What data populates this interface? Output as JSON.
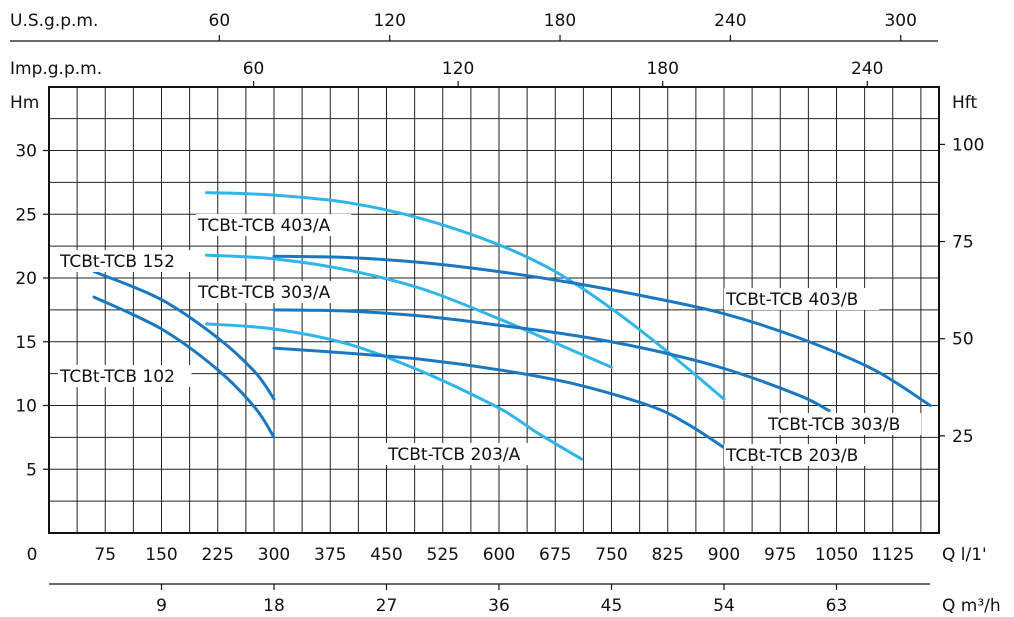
{
  "chart_data": {
    "type": "line",
    "title": "",
    "axes": {
      "top_usgpm": {
        "label": "U.S.g.p.m.",
        "ticks": [
          "60",
          "120",
          "180",
          "240",
          "300"
        ]
      },
      "top_impgpm": {
        "label": "Imp.g.p.m.",
        "ticks": [
          "60",
          "120",
          "180",
          "240"
        ]
      },
      "left": {
        "label": "Hm",
        "ticks": [
          "5",
          "10",
          "15",
          "20",
          "25",
          "30"
        ],
        "range": [
          0,
          35
        ]
      },
      "right": {
        "label": "Hft",
        "ticks": [
          "25",
          "50",
          "75",
          "100"
        ]
      },
      "bottom_lpm": {
        "label": "Q l/1'",
        "zero": "0",
        "ticks": [
          "75",
          "150",
          "225",
          "300",
          "375",
          "450",
          "525",
          "600",
          "675",
          "750",
          "825",
          "900",
          "975",
          "1050",
          "1125"
        ],
        "range": [
          0,
          1175
        ]
      },
      "bottom_m3h": {
        "label": "Q m³/h",
        "ticks": [
          "9",
          "18",
          "27",
          "36",
          "45",
          "54",
          "63"
        ]
      }
    },
    "grid": true,
    "series": [
      {
        "name": "TCBt-TCB 152",
        "color": "#1a78c2",
        "x": [
          60,
          150,
          225,
          275,
          300
        ],
        "y": [
          20.5,
          18.3,
          15.3,
          12.6,
          10.5
        ]
      },
      {
        "name": "TCBt-TCB 102",
        "color": "#1a78c2",
        "x": [
          60,
          150,
          225,
          275,
          300
        ],
        "y": [
          18.5,
          16.0,
          12.8,
          9.8,
          7.5
        ]
      },
      {
        "name": "TCBt-TCB 403/A",
        "color": "#2fb5ea",
        "x": [
          210,
          300,
          400,
          500,
          600,
          675,
          750,
          825,
          900
        ],
        "y": [
          26.7,
          26.5,
          25.9,
          24.6,
          22.6,
          20.5,
          17.6,
          14.2,
          10.5
        ]
      },
      {
        "name": "TCBt-TCB 303/A",
        "color": "#2fb5ea",
        "x": [
          210,
          300,
          400,
          500,
          600,
          675,
          750
        ],
        "y": [
          21.8,
          21.5,
          20.6,
          19.1,
          16.8,
          14.9,
          13.0
        ]
      },
      {
        "name": "TCBt-TCB 203/A",
        "color": "#2fb5ea",
        "x": [
          210,
          300,
          400,
          500,
          600,
          650,
          710
        ],
        "y": [
          16.4,
          16.0,
          14.8,
          12.6,
          9.8,
          7.9,
          5.8
        ]
      },
      {
        "name": "TCBt-TCB 403/B",
        "color": "#1a78c2",
        "x": [
          300,
          400,
          500,
          600,
          700,
          800,
          900,
          1000,
          1100,
          1175
        ],
        "y": [
          21.7,
          21.6,
          21.2,
          20.5,
          19.6,
          18.5,
          17.2,
          15.3,
          12.8,
          10.0
        ]
      },
      {
        "name": "TCBt-TCB 303/B",
        "color": "#1a78c2",
        "x": [
          300,
          400,
          500,
          600,
          700,
          800,
          900,
          1000,
          1040
        ],
        "y": [
          17.5,
          17.4,
          17.0,
          16.3,
          15.5,
          14.4,
          12.9,
          10.8,
          9.6
        ]
      },
      {
        "name": "TCBt-TCB 203/B",
        "color": "#1a78c2",
        "x": [
          300,
          400,
          500,
          600,
          700,
          800,
          850,
          900
        ],
        "y": [
          14.5,
          14.1,
          13.6,
          12.8,
          11.7,
          10.0,
          8.6,
          6.7
        ]
      }
    ]
  }
}
